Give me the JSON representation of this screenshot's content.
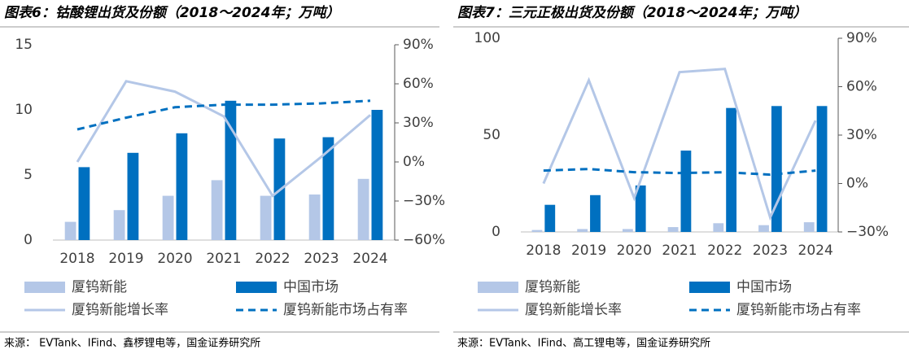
{
  "chart_data": [
    {
      "type": "bar-line",
      "title": "图表6：钴酸锂出货及份额（2018～2024年；万吨）",
      "categories": [
        "2018",
        "2019",
        "2020",
        "2021",
        "2022",
        "2023",
        "2024"
      ],
      "series": [
        {
          "name": "厦钨新能",
          "type": "bar",
          "color": "#b4c7e7",
          "values": [
            1.4,
            2.3,
            3.4,
            4.6,
            3.4,
            3.5,
            4.7
          ]
        },
        {
          "name": "中国市场",
          "type": "bar",
          "color": "#0070c0",
          "values": [
            5.6,
            6.7,
            8.2,
            10.7,
            7.8,
            7.9,
            10.0
          ]
        },
        {
          "name": "厦钨新能增长率",
          "type": "line",
          "axis": "y2",
          "color": "#b4c7e7",
          "values": [
            0,
            62,
            54,
            35,
            -26,
            4,
            36
          ]
        },
        {
          "name": "厦钨新能市场占有率",
          "type": "line",
          "axis": "y2",
          "dashed": true,
          "color": "#0070c0",
          "values": [
            25,
            34,
            42,
            44,
            44,
            45,
            47
          ]
        }
      ],
      "ylim": [
        0,
        15
      ],
      "yticks": [
        0,
        5,
        10,
        15
      ],
      "y2lim": [
        -60,
        90
      ],
      "y2ticks": [
        {
          "value": -60,
          "label": "−60%"
        },
        {
          "value": -30,
          "label": "−30%"
        },
        {
          "value": 0,
          "label": "0%"
        },
        {
          "value": 30,
          "label": "30%"
        },
        {
          "value": 60,
          "label": "60%"
        },
        {
          "value": 90,
          "label": "90%"
        }
      ],
      "source": "来源：  EVTank、IFind、鑫椤锂电等，国金证券研究所"
    },
    {
      "type": "bar-line",
      "title": "图表7：三元正极出货及份额（2018～2024年；万吨）",
      "categories": [
        "2018",
        "2019",
        "2020",
        "2021",
        "2022",
        "2023",
        "2024"
      ],
      "series": [
        {
          "name": "厦钨新能",
          "type": "bar",
          "color": "#b4c7e7",
          "values": [
            1,
            1.5,
            1.5,
            2.5,
            4.5,
            3.5,
            5
          ]
        },
        {
          "name": "中国市场",
          "type": "bar",
          "color": "#0070c0",
          "values": [
            14,
            19,
            24,
            42,
            64,
            65,
            65
          ]
        },
        {
          "name": "厦钨新能增长率",
          "type": "line",
          "axis": "y2",
          "color": "#b4c7e7",
          "values": [
            0,
            64,
            -9,
            69,
            71,
            -21,
            39
          ]
        },
        {
          "name": "厦钨新能市场占有率",
          "type": "line",
          "axis": "y2",
          "dashed": true,
          "color": "#0070c0",
          "values": [
            8,
            9,
            7,
            6.5,
            7,
            5.5,
            8
          ]
        }
      ],
      "ylim": [
        0,
        100
      ],
      "yticks": [
        0,
        50,
        100
      ],
      "y2lim": [
        -30,
        90
      ],
      "y2ticks": [
        {
          "value": -30,
          "label": "−30%"
        },
        {
          "value": 0,
          "label": "0%"
        },
        {
          "value": 30,
          "label": "30%"
        },
        {
          "value": 60,
          "label": "60%"
        },
        {
          "value": 90,
          "label": "90%"
        }
      ],
      "source": "来源：EVTank、IFind、高工锂电等，国金证券研究所"
    }
  ]
}
